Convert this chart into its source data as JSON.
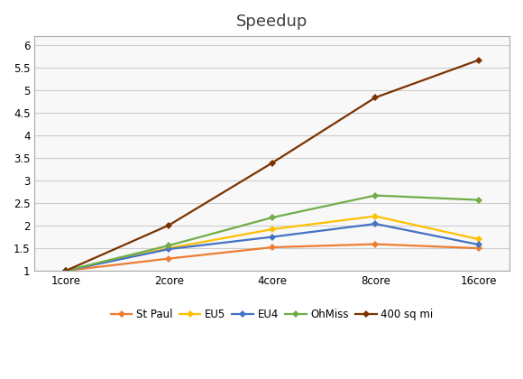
{
  "title": "Speedup",
  "x_labels": [
    "1core",
    "2core",
    "4core",
    "8core",
    "16core"
  ],
  "x_positions": [
    0,
    1,
    2,
    3,
    4
  ],
  "series": [
    {
      "label": "St Paul",
      "values": [
        1.0,
        1.27,
        1.52,
        1.59,
        1.5
      ],
      "color": "#ED7D31",
      "marker": "D",
      "linestyle": "-"
    },
    {
      "label": "EU5",
      "values": [
        1.0,
        1.5,
        1.92,
        2.21,
        1.7
      ],
      "color": "#FFC000",
      "marker": "D",
      "linestyle": "-"
    },
    {
      "label": "EU4",
      "values": [
        1.0,
        1.48,
        1.75,
        2.04,
        1.58
      ],
      "color": "#4472C4",
      "marker": "D",
      "linestyle": "-"
    },
    {
      "label": "OhMiss",
      "values": [
        1.0,
        1.56,
        2.18,
        2.67,
        2.57
      ],
      "color": "#70AD47",
      "marker": "D",
      "linestyle": "-"
    },
    {
      "label": "400 sq mi",
      "values": [
        1.0,
        2.01,
        3.39,
        4.84,
        5.67
      ],
      "color": "#7B3300",
      "marker": "D",
      "linestyle": "-"
    }
  ],
  "ylim": [
    1.0,
    6.2
  ],
  "yticks": [
    1.0,
    1.5,
    2.0,
    2.5,
    3.0,
    3.5,
    4.0,
    4.5,
    5.0,
    5.5,
    6.0
  ],
  "background_color": "#ffffff",
  "plot_bg_color": "#f8f8f8",
  "grid_color": "#cccccc",
  "border_color": "#aaaaaa",
  "title_fontsize": 13,
  "legend_fontsize": 8.5,
  "tick_fontsize": 8.5,
  "figsize": [
    5.8,
    4.2
  ],
  "dpi": 100
}
